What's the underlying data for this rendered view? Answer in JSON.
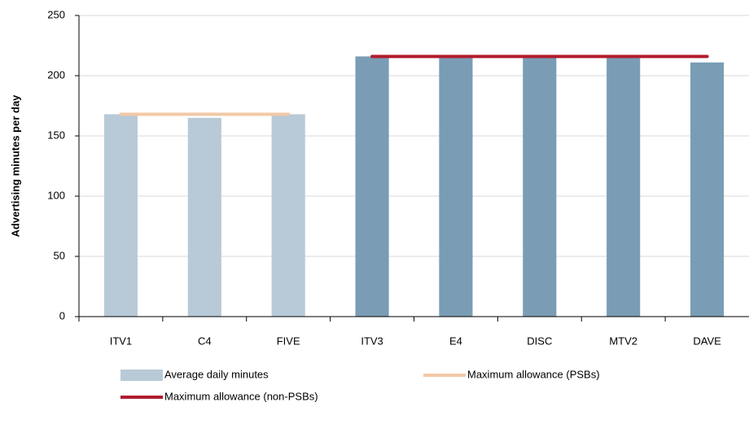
{
  "chart_data": {
    "type": "bar",
    "y_label": "Advertising minutes per day",
    "categories": [
      "ITV1",
      "C4",
      "FIVE",
      "ITV3",
      "E4",
      "DISC",
      "MTV2",
      "DAVE"
    ],
    "series": [
      {
        "name": "Average daily minutes",
        "type": "bar",
        "color": "#b8cad8",
        "colors": [
          "#b8cad8",
          "#b8cad8",
          "#b8cad8",
          "#7a9db5",
          "#7a9db5",
          "#7a9db5",
          "#7a9db5",
          "#7a9db5"
        ],
        "values": [
          168,
          165,
          168,
          216,
          216,
          216,
          216,
          211
        ]
      },
      {
        "name": "Maximum allowance (PSBs)",
        "type": "line",
        "color": "#f2c9a6",
        "values": [
          168,
          168,
          168,
          null,
          null,
          null,
          null,
          null
        ]
      },
      {
        "name": "Maximum allowance (non-PSBs)",
        "type": "line",
        "color": "#b01c2e",
        "values": [
          null,
          null,
          null,
          216,
          216,
          216,
          216,
          216
        ]
      }
    ],
    "ylim": [
      0,
      250
    ],
    "yticks": [
      0,
      50,
      100,
      150,
      200,
      250
    ],
    "grid": true
  }
}
